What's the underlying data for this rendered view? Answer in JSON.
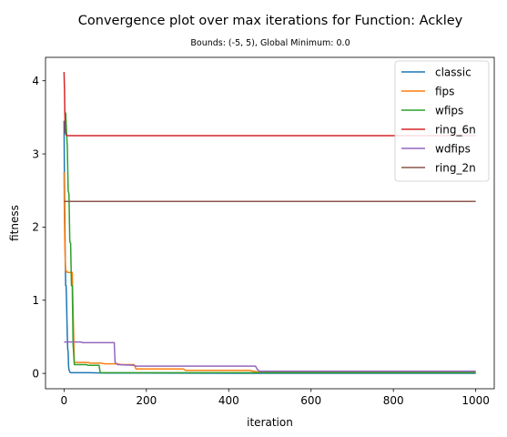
{
  "chart_data": {
    "type": "line",
    "title": "Convergence plot over max iterations for Function: Ackley",
    "subtitle": "Bounds: (-5, 5), Global Minimum: 0.0",
    "xlabel": "iteration",
    "ylabel": "fitness",
    "xlim": [
      -45,
      1045
    ],
    "ylim": [
      -0.21,
      4.32
    ],
    "xticks": [
      0,
      200,
      400,
      600,
      800,
      1000
    ],
    "yticks": [
      0,
      1,
      2,
      3,
      4
    ],
    "grid": false,
    "legend_position": "top-right",
    "series": [
      {
        "name": "classic",
        "color": "#1f77b4",
        "x": [
          0,
          1,
          2,
          3,
          4,
          5,
          6,
          7,
          8,
          9,
          10,
          11,
          12,
          14,
          16,
          20,
          30,
          60,
          100,
          200,
          400,
          600,
          800,
          1000
        ],
        "y": [
          3.45,
          2.6,
          2.1,
          1.5,
          1.2,
          1.2,
          1.02,
          0.75,
          0.5,
          0.33,
          0.3,
          0.1,
          0.05,
          0.02,
          0.01,
          0.01,
          0.01,
          0.01,
          0.005,
          0.005,
          0.002,
          0.001,
          0.001,
          0.001
        ]
      },
      {
        "name": "fips",
        "color": "#ff7f0e",
        "x": [
          0,
          1,
          2,
          4,
          6,
          8,
          20,
          22,
          25,
          30,
          60,
          62,
          90,
          100,
          130,
          140,
          170,
          175,
          290,
          295,
          450,
          470,
          1000
        ],
        "y": [
          2.75,
          2.1,
          1.75,
          1.4,
          1.4,
          1.38,
          1.38,
          0.85,
          0.15,
          0.15,
          0.15,
          0.14,
          0.14,
          0.13,
          0.13,
          0.12,
          0.12,
          0.06,
          0.06,
          0.04,
          0.04,
          0.02,
          0.02
        ]
      },
      {
        "name": "wfips",
        "color": "#2ca02c",
        "x": [
          0,
          3,
          4,
          6,
          8,
          10,
          12,
          14,
          16,
          18,
          20,
          22,
          25,
          30,
          55,
          58,
          85,
          88,
          200,
          600,
          1000
        ],
        "y": [
          3.45,
          3.45,
          3.56,
          3.3,
          3.1,
          2.5,
          2.45,
          1.8,
          1.78,
          1.2,
          1.2,
          0.4,
          0.12,
          0.12,
          0.12,
          0.11,
          0.11,
          0.01,
          0.01,
          0.01,
          0.01
        ]
      },
      {
        "name": "ring_6n",
        "color": "#d62728",
        "x": [
          0,
          1,
          2,
          3,
          5,
          8,
          20,
          100,
          500,
          1000
        ],
        "y": [
          4.12,
          3.9,
          3.55,
          3.3,
          3.26,
          3.25,
          3.25,
          3.25,
          3.25,
          3.25
        ]
      },
      {
        "name": "wdfips",
        "color": "#9467bd",
        "x": [
          0,
          5,
          40,
          45,
          122,
          124,
          130,
          170,
          175,
          465,
          470,
          475,
          600,
          1000
        ],
        "y": [
          0.43,
          0.43,
          0.43,
          0.42,
          0.42,
          0.15,
          0.12,
          0.11,
          0.1,
          0.1,
          0.05,
          0.03,
          0.03,
          0.03
        ]
      },
      {
        "name": "ring_2n",
        "color": "#8c564b",
        "x": [
          0,
          1000
        ],
        "y": [
          2.35,
          2.35
        ]
      }
    ]
  }
}
